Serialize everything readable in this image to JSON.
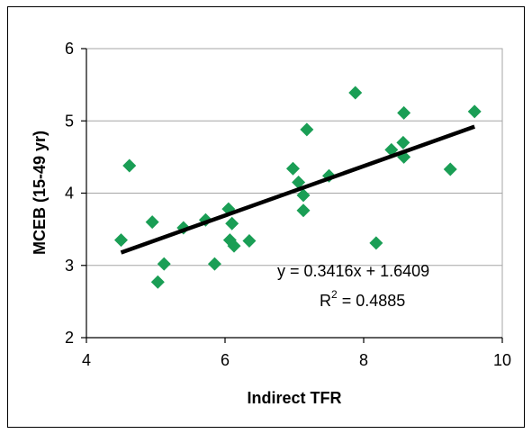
{
  "chart_data": {
    "type": "scatter",
    "xlabel": "Indirect TFR",
    "ylabel": "MCEB (15-49 yr)",
    "xlim": [
      4,
      10
    ],
    "ylim": [
      2,
      6
    ],
    "x_ticks": [
      "4",
      "6",
      "8",
      "10"
    ],
    "y_ticks": [
      "2",
      "3",
      "4",
      "5",
      "6"
    ],
    "grid": "horizontal",
    "marker_color": "#1a9e55",
    "trendline_color": "#000000",
    "points": [
      {
        "x": 4.5,
        "y": 3.35
      },
      {
        "x": 4.62,
        "y": 4.38
      },
      {
        "x": 4.95,
        "y": 3.6
      },
      {
        "x": 5.03,
        "y": 2.77
      },
      {
        "x": 5.12,
        "y": 3.02
      },
      {
        "x": 5.4,
        "y": 3.52
      },
      {
        "x": 5.72,
        "y": 3.63
      },
      {
        "x": 5.85,
        "y": 3.02
      },
      {
        "x": 6.05,
        "y": 3.78
      },
      {
        "x": 6.07,
        "y": 3.35
      },
      {
        "x": 6.1,
        "y": 3.58
      },
      {
        "x": 6.13,
        "y": 3.27
      },
      {
        "x": 6.35,
        "y": 3.34
      },
      {
        "x": 6.98,
        "y": 4.34
      },
      {
        "x": 7.06,
        "y": 4.15
      },
      {
        "x": 7.13,
        "y": 3.97
      },
      {
        "x": 7.13,
        "y": 3.76
      },
      {
        "x": 7.18,
        "y": 4.88
      },
      {
        "x": 7.5,
        "y": 4.24
      },
      {
        "x": 7.88,
        "y": 5.39
      },
      {
        "x": 8.18,
        "y": 3.31
      },
      {
        "x": 8.4,
        "y": 4.6
      },
      {
        "x": 8.57,
        "y": 4.7
      },
      {
        "x": 8.58,
        "y": 5.11
      },
      {
        "x": 8.58,
        "y": 4.5
      },
      {
        "x": 9.25,
        "y": 4.33
      },
      {
        "x": 9.6,
        "y": 5.13
      }
    ],
    "trendline": {
      "slope": 0.3416,
      "intercept": 1.6409,
      "x_range": [
        4.5,
        9.6
      ]
    },
    "equation_label": "y = 0.3416x + 1.6409",
    "r2_label_prefix": "R",
    "r2_label_exponent": "2",
    "r2_label_value": " = 0.4885"
  }
}
